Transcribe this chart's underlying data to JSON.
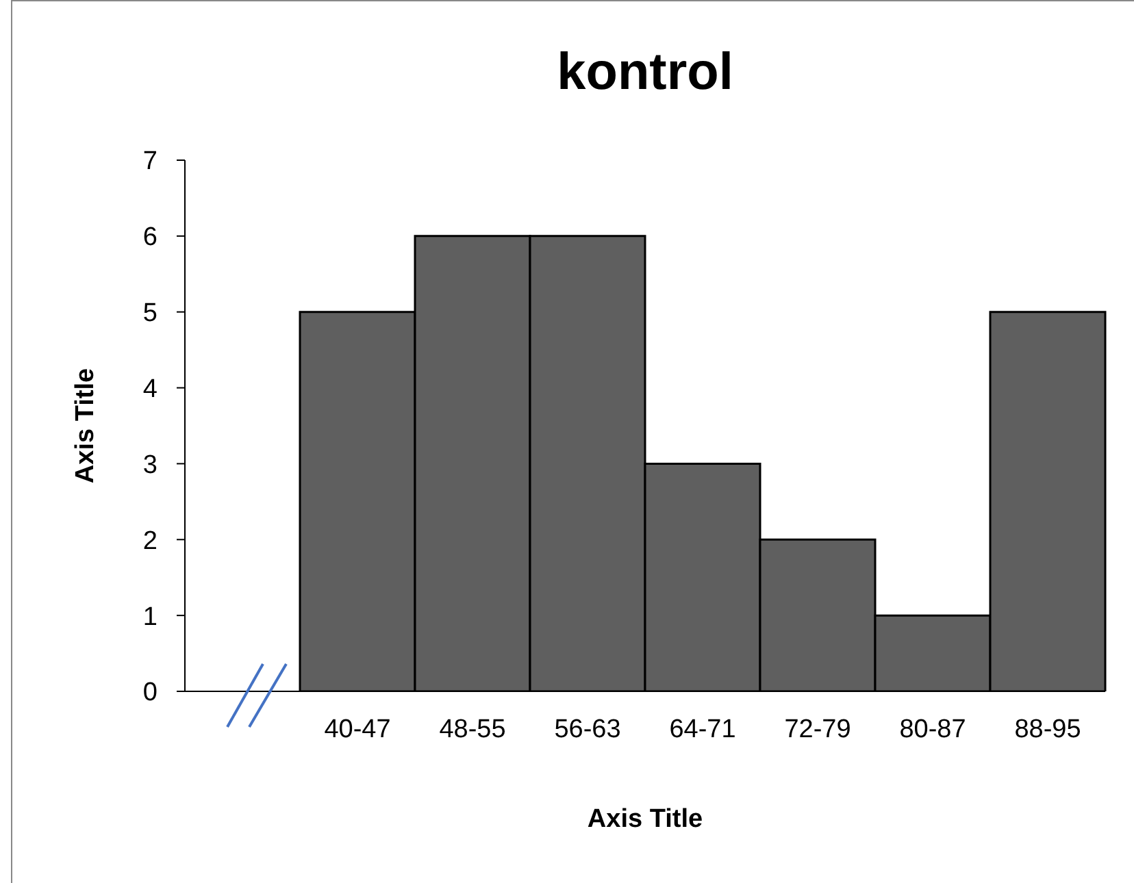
{
  "chart_data": {
    "type": "bar",
    "title": "kontrol",
    "xlabel": "Axis Title",
    "ylabel": "Axis Title",
    "categories": [
      null,
      "40-47",
      "48-55",
      "56-63",
      "64-71",
      "72-79",
      "80-87",
      "88-95"
    ],
    "values": [
      null,
      5,
      6,
      6,
      3,
      2,
      1,
      5
    ],
    "color": "#5f5f5f",
    "ylim": [
      0,
      7
    ],
    "yticks": [
      0,
      1,
      2,
      3,
      4,
      5,
      6,
      7
    ],
    "grid": false
  }
}
